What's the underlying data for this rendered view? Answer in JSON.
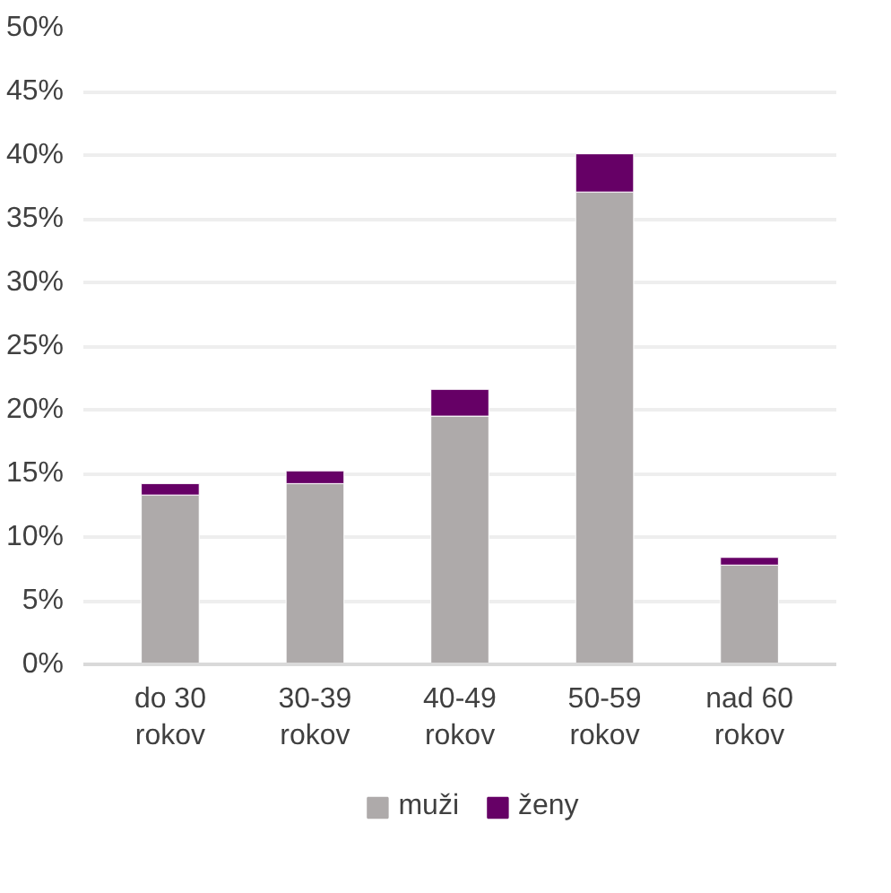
{
  "chart_data": {
    "type": "bar",
    "stacked": true,
    "categories": [
      "do 30\nrokov",
      "30-39\nrokov",
      "40-49\nrokov",
      "50-59\nrokov",
      "nad 60\nrokov"
    ],
    "series": [
      {
        "name": "muži",
        "color": "#aeaaaa",
        "values": [
          13.3,
          14.2,
          19.5,
          37.1,
          7.8
        ]
      },
      {
        "name": "ženy",
        "color": "#660066",
        "values": [
          0.9,
          1.0,
          2.1,
          3.0,
          0.6
        ]
      }
    ],
    "ylim": [
      0,
      50
    ],
    "yticks": [
      {
        "value": 0,
        "label": "0%"
      },
      {
        "value": 5,
        "label": "5%"
      },
      {
        "value": 10,
        "label": "10%"
      },
      {
        "value": 15,
        "label": "15%"
      },
      {
        "value": 20,
        "label": "20%"
      },
      {
        "value": 25,
        "label": "25%"
      },
      {
        "value": 30,
        "label": "30%"
      },
      {
        "value": 35,
        "label": "35%"
      },
      {
        "value": 40,
        "label": "40%"
      },
      {
        "value": 45,
        "label": "45%"
      },
      {
        "value": 50,
        "label": "50%"
      }
    ],
    "grid": "y",
    "legend": "bottom"
  }
}
